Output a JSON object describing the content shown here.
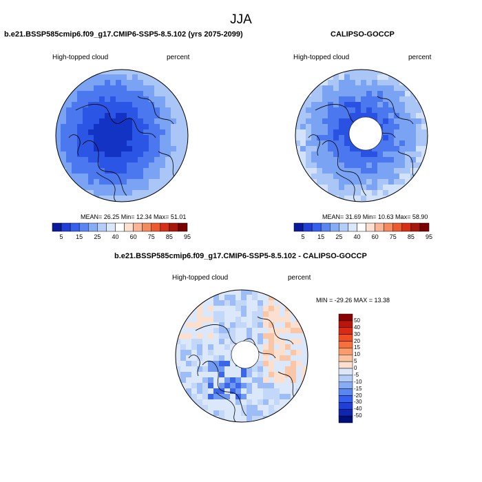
{
  "main_title": "JJA",
  "panels": [
    {
      "title": "b.e21.BSSP585cmip6.f09_g17.CMIP6-SSP5-8.5.102 (yrs 2075-2099)",
      "variable": "High-topped cloud",
      "units": "percent",
      "stats_text": "MEAN= 26.25  Min= 12.34  Max= 51.01"
    },
    {
      "title": "CALIPSO-GOCCP",
      "variable": "High-topped cloud",
      "units": "percent",
      "stats_text": "MEAN= 31.69  Min= 10.63  Max= 58.90"
    },
    {
      "title": "b.e21.BSSP585cmip6.f09_g17.CMIP6-SSP5-8.5.102 - CALIPSO-GOCCP",
      "variable": "High-topped cloud",
      "units": "percent",
      "stats_text": "MIN = -29.26 MAX =  13.38"
    }
  ],
  "chart_data": [
    {
      "type": "heatmap",
      "projection": "north polar stereographic",
      "stats": {
        "mean": 26.25,
        "min": 12.34,
        "max": 51.01
      },
      "colorbar_tick_labels": [
        "5",
        "15",
        "25",
        "40",
        "60",
        "75",
        "85",
        "95"
      ],
      "colorbar_colors": [
        "#0a1a9a",
        "#1f3fd6",
        "#3560ee",
        "#5a86f2",
        "#86acf5",
        "#b3cdf8",
        "#dbe8fb",
        "#ffffff",
        "#fde0d0",
        "#f9b596",
        "#f48a5e",
        "#ec5b30",
        "#d63016",
        "#a8170c",
        "#7a0000"
      ]
    },
    {
      "type": "heatmap",
      "projection": "north polar stereographic",
      "stats": {
        "mean": 31.69,
        "min": 10.63,
        "max": 58.9
      },
      "colorbar_tick_labels": [
        "5",
        "15",
        "25",
        "40",
        "60",
        "75",
        "85",
        "95"
      ],
      "colorbar_colors": [
        "#0a1a9a",
        "#1f3fd6",
        "#3560ee",
        "#5a86f2",
        "#86acf5",
        "#b3cdf8",
        "#dbe8fb",
        "#ffffff",
        "#fde0d0",
        "#f9b596",
        "#f48a5e",
        "#ec5b30",
        "#d63016",
        "#a8170c",
        "#7a0000"
      ]
    },
    {
      "type": "heatmap",
      "projection": "north polar stereographic",
      "stats": {
        "min": -29.26,
        "max": 13.38
      },
      "colorbar_tick_labels": [
        "50",
        "40",
        "30",
        "20",
        "15",
        "10",
        "5",
        "0",
        "-5",
        "-10",
        "-15",
        "-20",
        "-30",
        "-40",
        "-50"
      ],
      "colorbar_colors": [
        "#8b0000",
        "#b8160a",
        "#d92b12",
        "#ef4d22",
        "#f7703b",
        "#fb9a6a",
        "#fbc29f",
        "#fbe0cf",
        "#dbe8fb",
        "#b3cdf8",
        "#86acf5",
        "#5a86f2",
        "#3560ee",
        "#1f3fd6",
        "#0f26b0",
        "#00107a"
      ]
    }
  ]
}
